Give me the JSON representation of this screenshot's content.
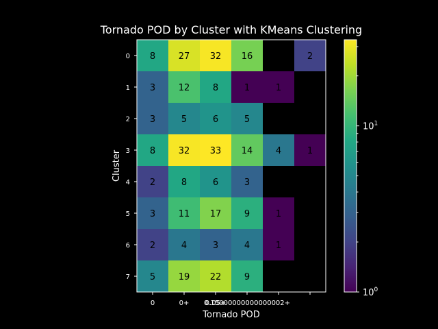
{
  "chart_data": {
    "type": "heatmap",
    "title": "Tornado POD by Cluster with KMeans Clustering",
    "xlabel": "Tornado POD",
    "ylabel": "Cluster",
    "x_categories": [
      "0",
      "0+",
      "0.05+",
      "0.15000000000000002+",
      "",
      ""
    ],
    "x_tick_labels_shown": [
      "0",
      "0+",
      "0.05+",
      "0.15000000000000002+"
    ],
    "y_categories": [
      "0",
      "1",
      "2",
      "3",
      "4",
      "5",
      "6",
      "7"
    ],
    "values": [
      [
        8,
        27,
        32,
        16,
        null,
        2
      ],
      [
        3,
        12,
        8,
        1,
        1,
        null
      ],
      [
        3,
        5,
        6,
        5,
        null,
        null
      ],
      [
        8,
        32,
        33,
        14,
        4,
        1
      ],
      [
        2,
        8,
        6,
        3,
        null,
        null
      ],
      [
        3,
        11,
        17,
        9,
        1,
        null
      ],
      [
        2,
        4,
        3,
        4,
        1,
        null
      ],
      [
        5,
        19,
        22,
        9,
        null,
        null
      ]
    ],
    "colorbar": {
      "scale": "log",
      "range": [
        1,
        33
      ],
      "colormap": "viridis",
      "tick_labels": [
        {
          "base": "10",
          "exp": "0",
          "value": 1
        },
        {
          "base": "10",
          "exp": "1",
          "value": 10
        }
      ]
    },
    "missing_color": "#000000"
  }
}
